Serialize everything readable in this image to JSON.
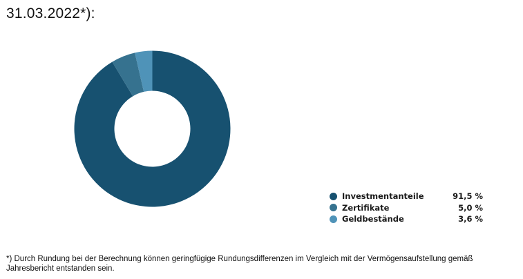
{
  "title": "31.03.2022*):",
  "chart_data": {
    "type": "pie",
    "subtype": "donut",
    "series": [
      {
        "name": "Investmentanteile",
        "value": 91.5,
        "label": "91,5 %",
        "color": "#175170"
      },
      {
        "name": "Zertifikate",
        "value": 5.0,
        "label": "5,0 %",
        "color": "#36728f"
      },
      {
        "name": "Geldbestände",
        "value": 3.6,
        "label": "3,6 %",
        "color": "#4f93b8"
      }
    ],
    "legend_position": "bottom-right"
  },
  "footnote": "*) Durch Rundung bei der Berechnung können geringfügige Rundungsdifferenzen im Vergleich mit der Vermögensaufstellung gemäß Jahresbericht entstanden sein."
}
